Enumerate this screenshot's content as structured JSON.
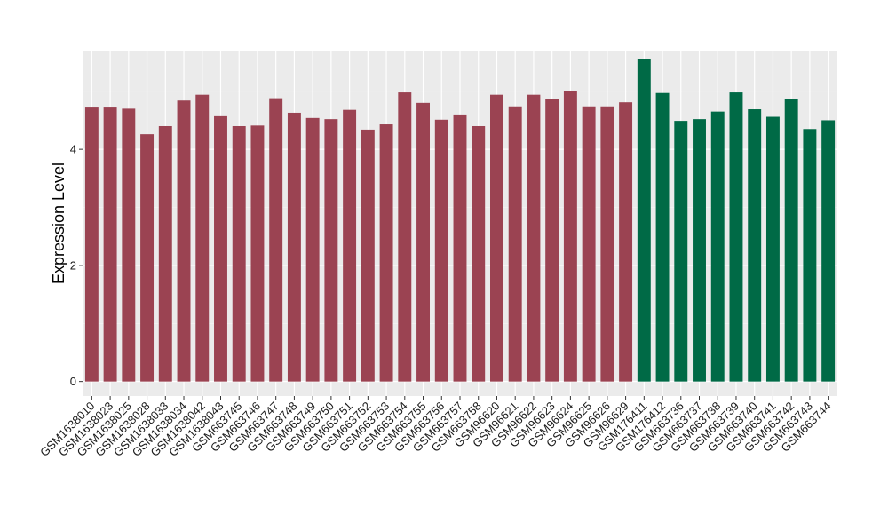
{
  "chart_data": {
    "type": "bar",
    "title": "",
    "xlabel": "",
    "ylabel": "Expression Level",
    "ylim": [
      -0.25,
      5.7
    ],
    "yticks": [
      0,
      2,
      4
    ],
    "grid": true,
    "legend": "none",
    "colors": {
      "panel_background": "#ebebeb",
      "grid_major": "#ffffff",
      "grid_minor": "#f5f5f5",
      "group_1": "#9b4352",
      "group_2": "#006a46"
    },
    "categories": [
      "GSM1638010",
      "GSM1638023",
      "GSM1638025",
      "GSM1638028",
      "GSM1638033",
      "GSM1638034",
      "GSM1638042",
      "GSM1638043",
      "GSM663745",
      "GSM663746",
      "GSM663747",
      "GSM663748",
      "GSM663749",
      "GSM663750",
      "GSM663751",
      "GSM663752",
      "GSM663753",
      "GSM663754",
      "GSM663755",
      "GSM663756",
      "GSM663757",
      "GSM663758",
      "GSM96620",
      "GSM96621",
      "GSM96622",
      "GSM96623",
      "GSM96624",
      "GSM96625",
      "GSM96626",
      "GSM96629",
      "GSM176411",
      "GSM176412",
      "GSM663736",
      "GSM663737",
      "GSM663738",
      "GSM663739",
      "GSM663740",
      "GSM663741",
      "GSM663742",
      "GSM663743",
      "GSM663744"
    ],
    "values": [
      4.72,
      4.72,
      4.7,
      4.26,
      4.4,
      4.84,
      4.94,
      4.57,
      4.4,
      4.41,
      4.88,
      4.63,
      4.54,
      4.52,
      4.68,
      4.34,
      4.43,
      4.98,
      4.8,
      4.51,
      4.6,
      4.4,
      4.94,
      4.74,
      4.94,
      4.86,
      5.01,
      4.74,
      4.74,
      4.81,
      5.55,
      4.97,
      4.49,
      4.52,
      4.65,
      4.98,
      4.69,
      4.56,
      4.86,
      4.35,
      4.5
    ],
    "groups": [
      1,
      1,
      1,
      1,
      1,
      1,
      1,
      1,
      1,
      1,
      1,
      1,
      1,
      1,
      1,
      1,
      1,
      1,
      1,
      1,
      1,
      1,
      1,
      1,
      1,
      1,
      1,
      1,
      1,
      1,
      2,
      2,
      2,
      2,
      2,
      2,
      2,
      2,
      2,
      2,
      2
    ]
  }
}
